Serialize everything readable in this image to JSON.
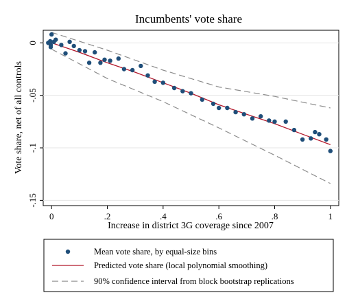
{
  "chart_data": {
    "type": "scatter",
    "title": "Incumbents' vote share",
    "xlabel": "Increase in district 3G coverage since 2007",
    "ylabel": "Vote share, net of all controls",
    "xlim": [
      -0.03,
      1.03
    ],
    "ylim": [
      -0.155,
      0.012
    ],
    "xticks": [
      0,
      0.2,
      0.4,
      0.6,
      0.8,
      1
    ],
    "xtick_labels": [
      "0",
      ".2",
      ".4",
      ".6",
      ".8",
      "1"
    ],
    "yticks": [
      0,
      -0.05,
      -0.1,
      -0.15
    ],
    "ytick_labels": [
      "0",
      "-.05",
      "-.1",
      "-.15"
    ],
    "grid": true,
    "legend_position": "bottom",
    "series": [
      {
        "name": "Mean vote share, by equal-size bins",
        "kind": "points",
        "color": "#1f4e79",
        "points": [
          [
            -0.012,
            0.0
          ],
          [
            -0.005,
            0.0015
          ],
          [
            -0.003,
            -0.002
          ],
          [
            -0.003,
            -0.004
          ],
          [
            0.0,
            0.008
          ],
          [
            0.008,
            0.001
          ],
          [
            0.015,
            0.003
          ],
          [
            0.035,
            -0.002
          ],
          [
            0.05,
            -0.01
          ],
          [
            0.065,
            0.001
          ],
          [
            0.08,
            -0.003
          ],
          [
            0.1,
            -0.007
          ],
          [
            0.12,
            -0.008
          ],
          [
            0.135,
            -0.019
          ],
          [
            0.155,
            -0.009
          ],
          [
            0.175,
            -0.019
          ],
          [
            0.19,
            -0.016
          ],
          [
            0.21,
            -0.017
          ],
          [
            0.24,
            -0.015
          ],
          [
            0.26,
            -0.025
          ],
          [
            0.29,
            -0.026
          ],
          [
            0.32,
            -0.022
          ],
          [
            0.345,
            -0.031
          ],
          [
            0.37,
            -0.037
          ],
          [
            0.4,
            -0.038
          ],
          [
            0.44,
            -0.043
          ],
          [
            0.47,
            -0.046
          ],
          [
            0.5,
            -0.048
          ],
          [
            0.54,
            -0.054
          ],
          [
            0.58,
            -0.058
          ],
          [
            0.6,
            -0.062
          ],
          [
            0.63,
            -0.062
          ],
          [
            0.66,
            -0.066
          ],
          [
            0.69,
            -0.068
          ],
          [
            0.72,
            -0.072
          ],
          [
            0.75,
            -0.07
          ],
          [
            0.78,
            -0.074
          ],
          [
            0.8,
            -0.075
          ],
          [
            0.84,
            -0.075
          ],
          [
            0.87,
            -0.083
          ],
          [
            0.9,
            -0.092
          ],
          [
            0.93,
            -0.091
          ],
          [
            0.945,
            -0.085
          ],
          [
            0.96,
            -0.087
          ],
          [
            0.985,
            -0.092
          ],
          [
            1.0,
            -0.103
          ]
        ]
      },
      {
        "name": "Predicted vote share (local polynomial smoothing)",
        "kind": "line",
        "color": "#b2182b",
        "points": [
          [
            0.0,
            0.0
          ],
          [
            0.1,
            -0.009
          ],
          [
            0.2,
            -0.019
          ],
          [
            0.3,
            -0.028
          ],
          [
            0.4,
            -0.038
          ],
          [
            0.5,
            -0.048
          ],
          [
            0.6,
            -0.059
          ],
          [
            0.7,
            -0.068
          ],
          [
            0.8,
            -0.077
          ],
          [
            0.9,
            -0.087
          ],
          [
            1.0,
            -0.097
          ]
        ]
      },
      {
        "name": "90% confidence interval from block bootstrap replications",
        "kind": "band",
        "color": "#8c8c8c",
        "upper": [
          [
            0.0,
            0.01
          ],
          [
            0.2,
            -0.007
          ],
          [
            0.4,
            -0.026
          ],
          [
            0.6,
            -0.042
          ],
          [
            0.8,
            -0.051
          ],
          [
            1.0,
            -0.062
          ]
        ],
        "lower": [
          [
            0.0,
            -0.006
          ],
          [
            0.2,
            -0.034
          ],
          [
            0.4,
            -0.056
          ],
          [
            0.6,
            -0.081
          ],
          [
            0.8,
            -0.107
          ],
          [
            1.0,
            -0.134
          ]
        ]
      }
    ]
  }
}
